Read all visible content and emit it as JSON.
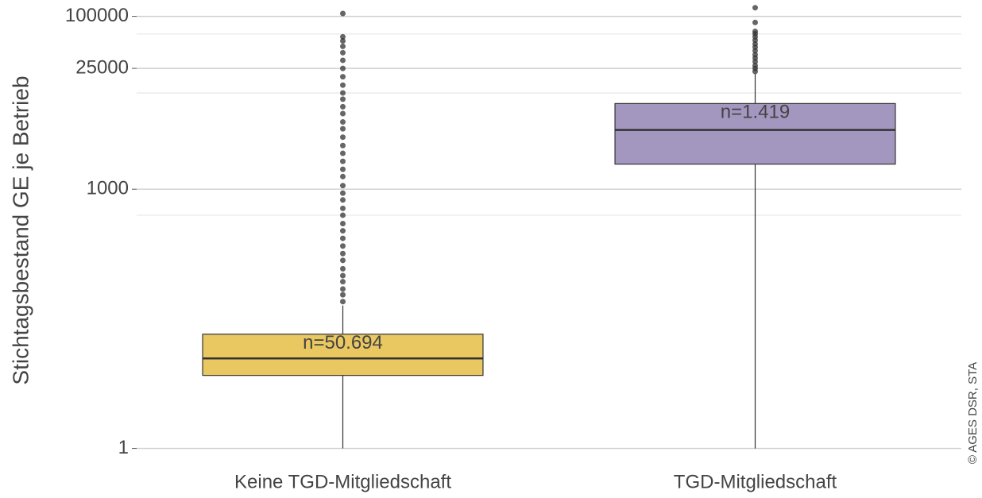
{
  "chart_data": {
    "type": "box",
    "ylabel": "Stichtagsbestand GE je Betrieb",
    "caption": "© AGES DSR, STA",
    "log_y": true,
    "grid": true,
    "ylim": [
      0.95,
      120000
    ],
    "yticks": [
      1,
      1000,
      25000,
      100000
    ],
    "minor_yticks": [
      500,
      13000,
      62500
    ],
    "categories": [
      "Keine TGD-Mitgliedschaft",
      "TGD-Mitgliedschaft"
    ],
    "boxes": [
      {
        "whisker_low": 1,
        "q1": 7,
        "median": 11,
        "q3": 21,
        "whisker_high": 45,
        "color": "#e9c862",
        "annotation": "n=50.694",
        "outliers": [
          50,
          60,
          70,
          85,
          100,
          120,
          150,
          180,
          220,
          270,
          330,
          400,
          500,
          600,
          750,
          900,
          1100,
          1400,
          1700,
          2100,
          2600,
          3200,
          4000,
          5000,
          6000,
          7500,
          9000,
          11000,
          13000,
          16000,
          20000,
          25000,
          31000,
          38000,
          45000,
          52000,
          58000,
          108000
        ]
      },
      {
        "whisker_low": 1,
        "q1": 1950,
        "median": 4850,
        "q3": 9800,
        "whisker_high": 21700,
        "color": "#a397bf",
        "annotation": "n=1.419",
        "outliers": [
          23000,
          25000,
          27000,
          30000,
          33000,
          36000,
          40000,
          44000,
          48000,
          53000,
          58000,
          63000,
          67000,
          85000,
          126000
        ]
      }
    ]
  }
}
